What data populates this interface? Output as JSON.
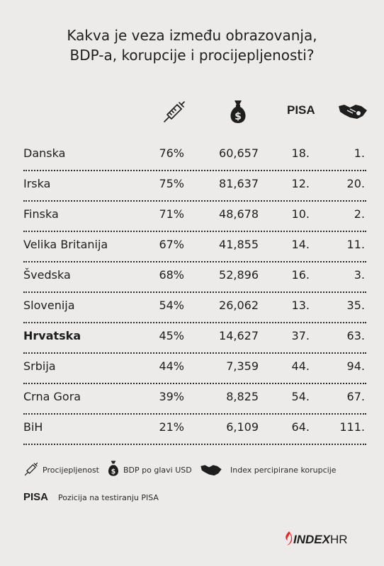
{
  "title": [
    "Kakva je veza između obrazovanja,",
    "BDP-a, korupcije i procijepljenosti?"
  ],
  "columns": {
    "vaccination_icon": "syringe-icon",
    "gdp_icon": "money-bag-icon",
    "pisa_label": "PISA",
    "corruption_icon": "handshake-icon"
  },
  "chart_data": {
    "type": "table",
    "rows": [
      {
        "country": "Danska",
        "vaccination": "76%",
        "gdp": "60,657",
        "pisa": "18.",
        "corruption": "1."
      },
      {
        "country": "Irska",
        "vaccination": "75%",
        "gdp": "81,637",
        "pisa": "12.",
        "corruption": "20."
      },
      {
        "country": "Finska",
        "vaccination": "71%",
        "gdp": "48,678",
        "pisa": "10.",
        "corruption": "2."
      },
      {
        "country": "Velika Britanija",
        "vaccination": "67%",
        "gdp": "41,855",
        "pisa": "14.",
        "corruption": "11."
      },
      {
        "country": "Švedska",
        "vaccination": "68%",
        "gdp": "52,896",
        "pisa": "16.",
        "corruption": "3."
      },
      {
        "country": "Slovenija",
        "vaccination": "54%",
        "gdp": "26,062",
        "pisa": "13.",
        "corruption": "35."
      },
      {
        "country": "Hrvatska",
        "vaccination": "45%",
        "gdp": "14,627",
        "pisa": "37.",
        "corruption": "63.",
        "highlight": true
      },
      {
        "country": "Srbija",
        "vaccination": "44%",
        "gdp": "7,359",
        "pisa": "44.",
        "corruption": "94."
      },
      {
        "country": "Crna Gora",
        "vaccination": "39%",
        "gdp": "8,825",
        "pisa": "54.",
        "corruption": "67."
      },
      {
        "country": "BiH",
        "vaccination": "21%",
        "gdp": "6,109",
        "pisa": "64.",
        "corruption": "111."
      }
    ]
  },
  "legend": {
    "vaccination": "Procijepljenost",
    "gdp": "BDP po glavi USD",
    "corruption": "Index percipirane korupcije",
    "pisa_label": "PISA",
    "pisa": "Pozicija na testiranju PISA"
  },
  "logo": {
    "index": "INDEX",
    "hr": "HR",
    "accent": "#e3262b"
  }
}
